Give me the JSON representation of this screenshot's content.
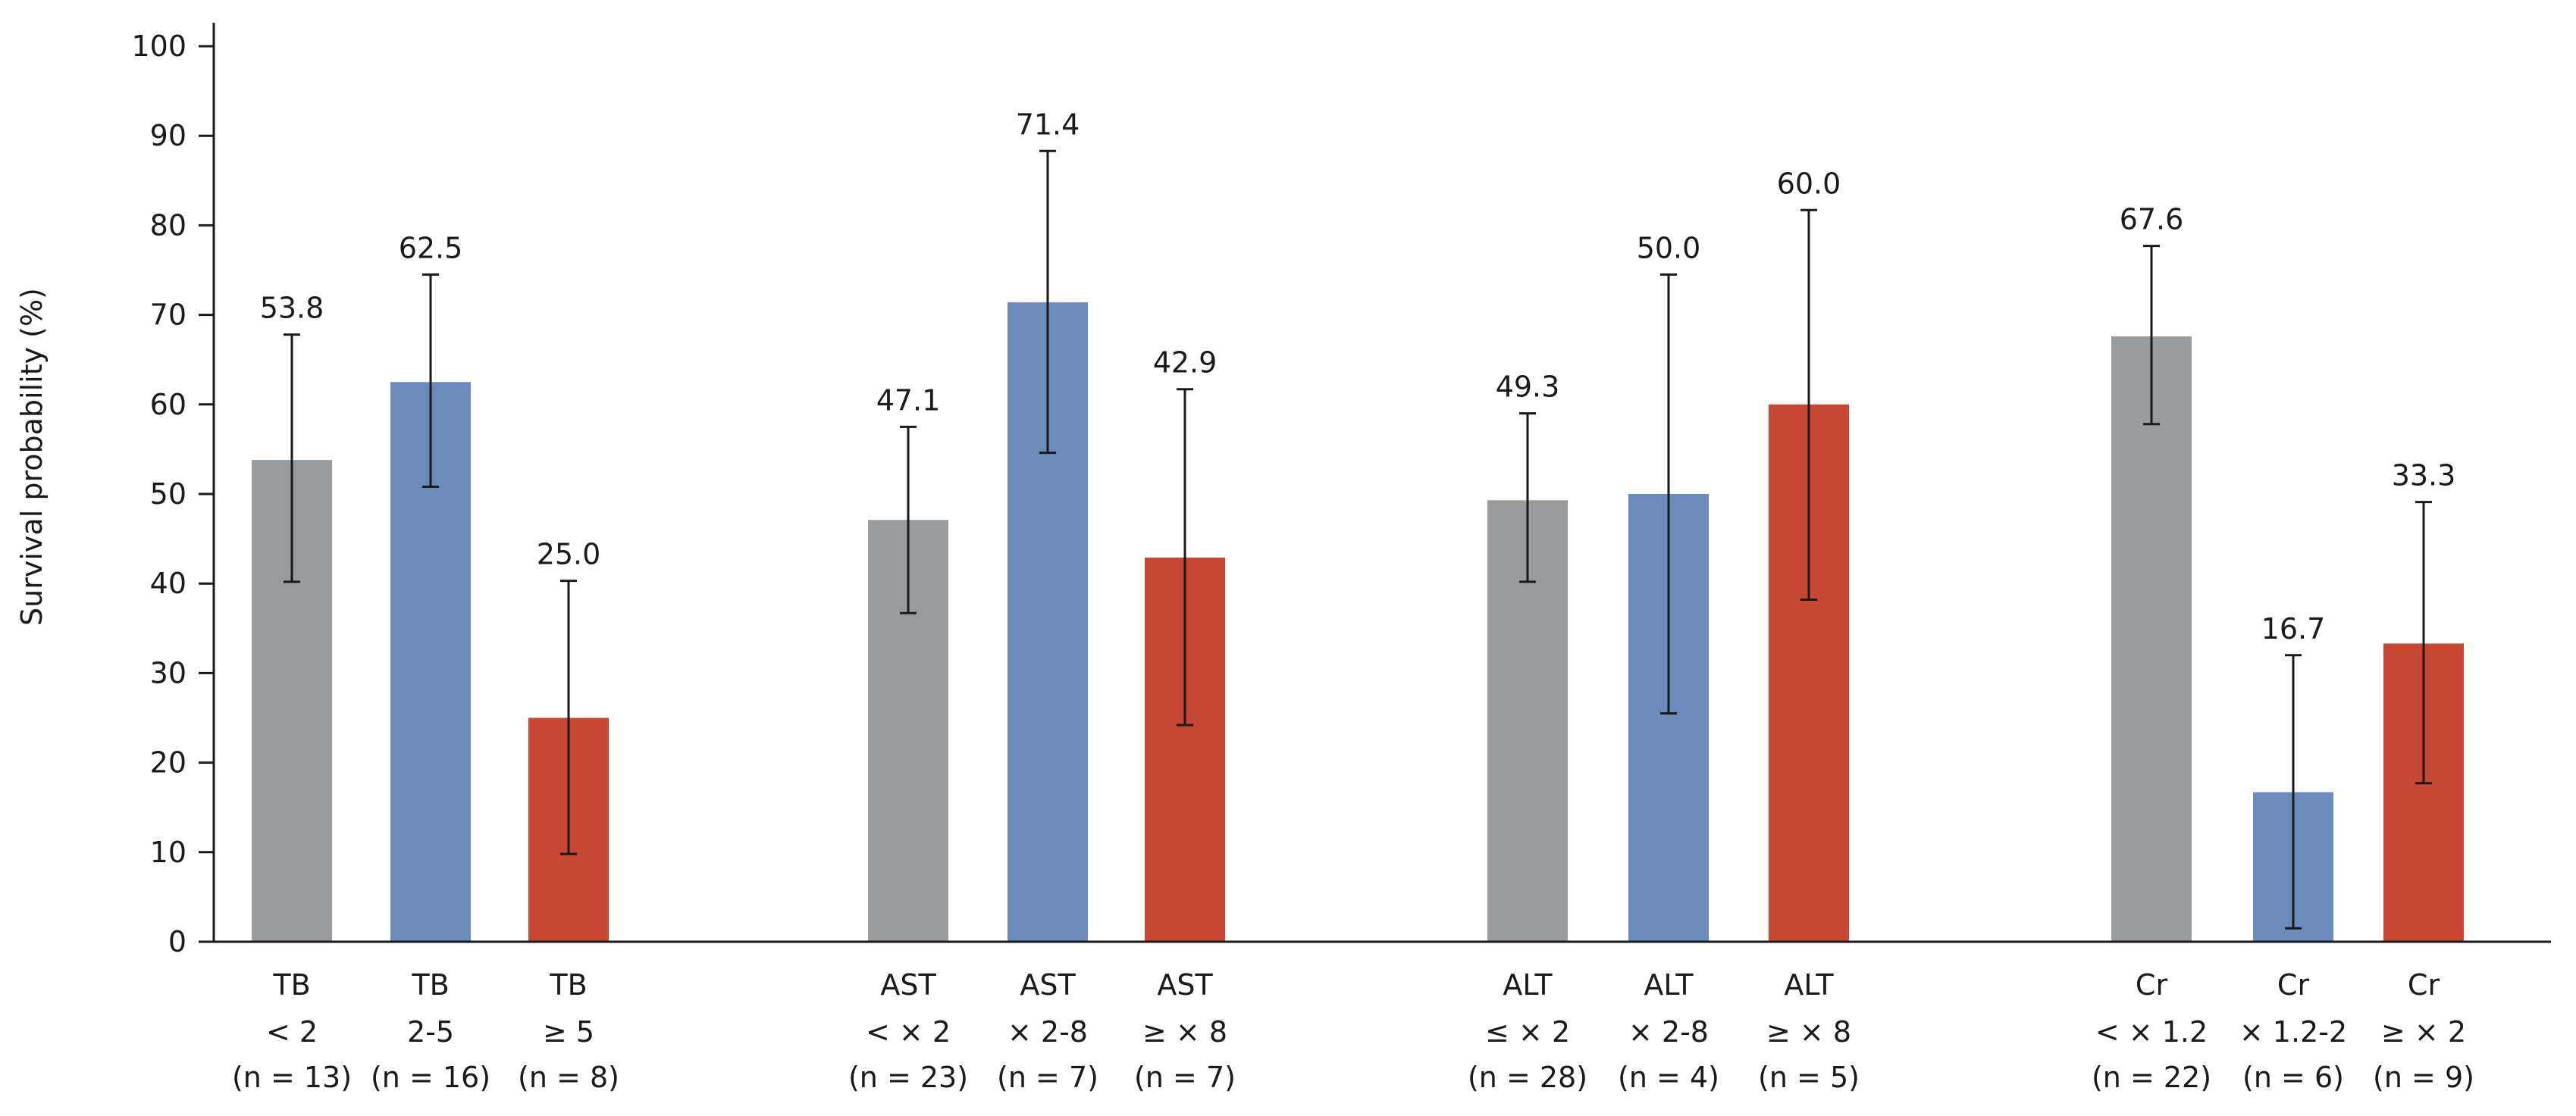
{
  "chart_data": {
    "type": "bar",
    "title": "",
    "xlabel": "",
    "ylabel": "Survival probability (%)",
    "ylim": [
      0,
      100
    ],
    "yticks": [
      0,
      10,
      20,
      30,
      40,
      50,
      60,
      70,
      80,
      90,
      100
    ],
    "colors": {
      "low": "#999c9e",
      "mid": "#6a8bbb",
      "high": "#c74634"
    },
    "groups": [
      {
        "name": "TB",
        "bars": [
          {
            "label": [
              "TB",
              "< 2",
              "(n = 13)"
            ],
            "value": 53.8,
            "value_label": "53.8",
            "err_low": 40.2,
            "err_high": 67.8,
            "color_key": "low"
          },
          {
            "label": [
              "TB",
              "2-5",
              "(n = 16)"
            ],
            "value": 62.5,
            "value_label": "62.5",
            "err_low": 50.8,
            "err_high": 74.5,
            "color_key": "mid"
          },
          {
            "label": [
              "TB",
              "≥ 5",
              "(n = 8)"
            ],
            "value": 25.0,
            "value_label": "25.0",
            "err_low": 9.8,
            "err_high": 40.3,
            "color_key": "high"
          }
        ]
      },
      {
        "name": "AST",
        "bars": [
          {
            "label": [
              "AST",
              "< × 2",
              "(n = 23)"
            ],
            "value": 47.1,
            "value_label": "47.1",
            "err_low": 36.7,
            "err_high": 57.5,
            "color_key": "low"
          },
          {
            "label": [
              "AST",
              "× 2-8",
              "(n = 7)"
            ],
            "value": 71.4,
            "value_label": "71.4",
            "err_low": 54.6,
            "err_high": 88.3,
            "color_key": "mid"
          },
          {
            "label": [
              "AST",
              "≥ × 8",
              "(n = 7)"
            ],
            "value": 42.9,
            "value_label": "42.9",
            "err_low": 24.2,
            "err_high": 61.7,
            "color_key": "high"
          }
        ]
      },
      {
        "name": "ALT",
        "bars": [
          {
            "label": [
              "ALT",
              "≤ × 2",
              "(n = 28)"
            ],
            "value": 49.3,
            "value_label": "49.3",
            "err_low": 40.2,
            "err_high": 59.0,
            "color_key": "low"
          },
          {
            "label": [
              "ALT",
              "× 2-8",
              "(n = 4)"
            ],
            "value": 50.0,
            "value_label": "50.0",
            "err_low": 25.5,
            "err_high": 74.5,
            "color_key": "mid"
          },
          {
            "label": [
              "ALT",
              "≥ × 8",
              "(n = 5)"
            ],
            "value": 60.0,
            "value_label": "60.0",
            "err_low": 38.2,
            "err_high": 81.7,
            "color_key": "high"
          }
        ]
      },
      {
        "name": "Cr",
        "bars": [
          {
            "label": [
              "Cr",
              "< × 1.2",
              "(n = 22)"
            ],
            "value": 67.6,
            "value_label": "67.6",
            "err_low": 57.8,
            "err_high": 77.7,
            "color_key": "low"
          },
          {
            "label": [
              "Cr",
              "× 1.2-2",
              "(n = 6)"
            ],
            "value": 16.7,
            "value_label": "16.7",
            "err_low": 1.5,
            "err_high": 32.0,
            "color_key": "mid"
          },
          {
            "label": [
              "Cr",
              "≥ × 2",
              "(n = 9)"
            ],
            "value": 33.3,
            "value_label": "33.3",
            "err_low": 17.7,
            "err_high": 49.1,
            "color_key": "high"
          }
        ]
      }
    ]
  }
}
